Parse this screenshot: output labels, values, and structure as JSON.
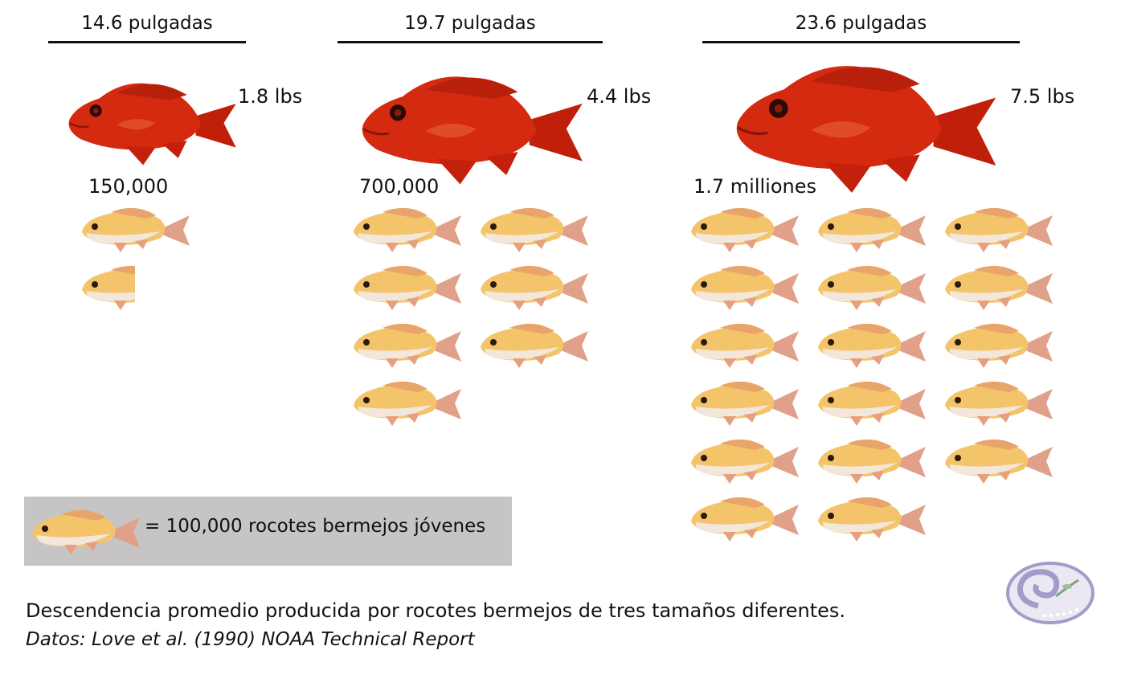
{
  "chart_data": {
    "type": "pictograph",
    "unit_label": "= 100,000 rocotes bermejos jóvenes",
    "unit_value": 100000,
    "groups": [
      {
        "length": "14.6 pulgadas",
        "weight": "1.8 lbs",
        "offspring_label": "150,000",
        "offspring": 150000
      },
      {
        "length": "19.7 pulgadas",
        "weight": "4.4 lbs",
        "offspring_label": "700,000",
        "offspring": 700000
      },
      {
        "length": "23.6 pulgadas",
        "weight": "7.5 lbs",
        "offspring_label": "1.7 milliones",
        "offspring": 1700000
      }
    ],
    "caption": "Descendencia promedio producida por rocotes bermejos de tres tamaños diferentes.",
    "source": "Datos: Love et al. (1990) NOAA Technical Report"
  },
  "colors": {
    "adult_fish": "#d42a10",
    "juvenile_fish": "#f2b13a",
    "legend_box": "#c6c4c4",
    "logo": "#a39cc8"
  }
}
